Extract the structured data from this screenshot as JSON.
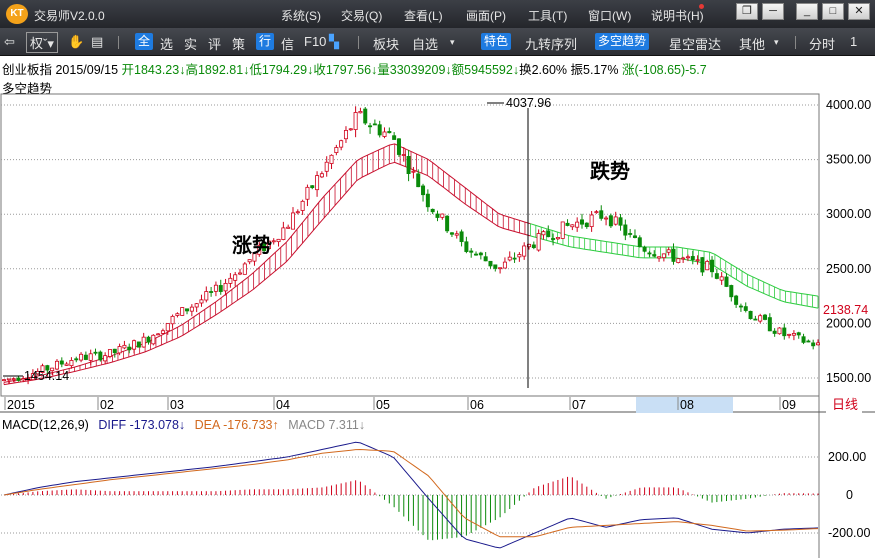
{
  "titlebar": {
    "app_name": "交易师V2.0.0",
    "menus": [
      "系统(S)",
      "交易(Q)",
      "查看(L)",
      "画面(P)",
      "工具(T)",
      "窗口(W)",
      "说明书(H)"
    ]
  },
  "toolbar": {
    "quan": "权",
    "items": [
      "全",
      "选",
      "实",
      "评",
      "策",
      "行",
      "信",
      "F10"
    ],
    "bankuai": "板块",
    "zixuan": "自选",
    "tese": "特色",
    "jiuzhuan": "九转序列",
    "duokong": "多空趋势",
    "xingkong": "星空雷达",
    "qita": "其他",
    "fenshi": "分时",
    "one": "1"
  },
  "info": {
    "name_date": "创业板指 2015/09/15",
    "open": "开1843.23↓",
    "high": "高1892.81↓",
    "low": "低1794.29↓",
    "close": "收1797.56↓",
    "volume": "量33039209↓",
    "amount": "额5945592↓",
    "turnover": "换2.60%",
    "amplitude": "振5.17%",
    "change": "涨(-108.65)-5.7",
    "indicator": "多空趋势"
  },
  "annotations": {
    "rise": "涨势",
    "fall": "跌势",
    "peak": "4037.96",
    "trough": "1454.14",
    "current": "2138.74"
  },
  "price_axis": [
    "4000.00",
    "3500.00",
    "3000.00",
    "2500.00",
    "2000.00",
    "1500.00"
  ],
  "time_axis": [
    "2015",
    "02",
    "03",
    "04",
    "05",
    "06",
    "07",
    "08",
    "09"
  ],
  "period_label": "日线",
  "macd": {
    "label": "MACD(12,26,9)",
    "diff": "DIFF -173.078↓",
    "dea": "DEA -176.733↑",
    "macd": "MACD 7.311↓",
    "axis": [
      "200.00",
      "0",
      "-200.00"
    ]
  },
  "colors": {
    "up": "#d0021b",
    "down": "#0a8a0a",
    "band_up": "#c8102e",
    "band_down": "#2ecc40",
    "diff_line": "#1a1a8c",
    "dea_line": "#d2691e",
    "axis_text": "#000000",
    "grid": "#9a9a9a",
    "highlight": "#c9dff5"
  },
  "chart_data": {
    "type": "candlestick",
    "title": "创业板指",
    "ylim": [
      1400,
      4150
    ],
    "x": [
      "2015-01",
      "2015-02",
      "2015-03",
      "2015-04",
      "2015-05",
      "2015-06",
      "2015-07",
      "2015-08",
      "2015-09"
    ],
    "price_ticks": [
      1500,
      2000,
      2500,
      3000,
      3500,
      4000
    ],
    "close_trend": [
      1480,
      1560,
      1680,
      1720,
      1850,
      2100,
      2300,
      2600,
      2900,
      3400,
      3900,
      3700,
      3100,
      2700,
      2500,
      2750,
      2900,
      3000,
      2700,
      2600,
      2500,
      2100,
      1900,
      1800
    ],
    "band_upper": [
      1460,
      1520,
      1600,
      1700,
      1820,
      1980,
      2200,
      2450,
      2750,
      3150,
      3500,
      3650,
      3500,
      3250,
      3000,
      2900,
      2800,
      2750,
      2700,
      2700,
      2650,
      2450,
      2300,
      2250
    ],
    "band_lower": [
      1440,
      1490,
      1560,
      1640,
      1740,
      1880,
      2080,
      2300,
      2570,
      2950,
      3320,
      3480,
      3350,
      3100,
      2880,
      2790,
      2700,
      2650,
      2600,
      2600,
      2540,
      2340,
      2200,
      2140
    ],
    "macd_range": [
      -300,
      300
    ],
    "macd_ticks": [
      200,
      0,
      -200
    ]
  }
}
